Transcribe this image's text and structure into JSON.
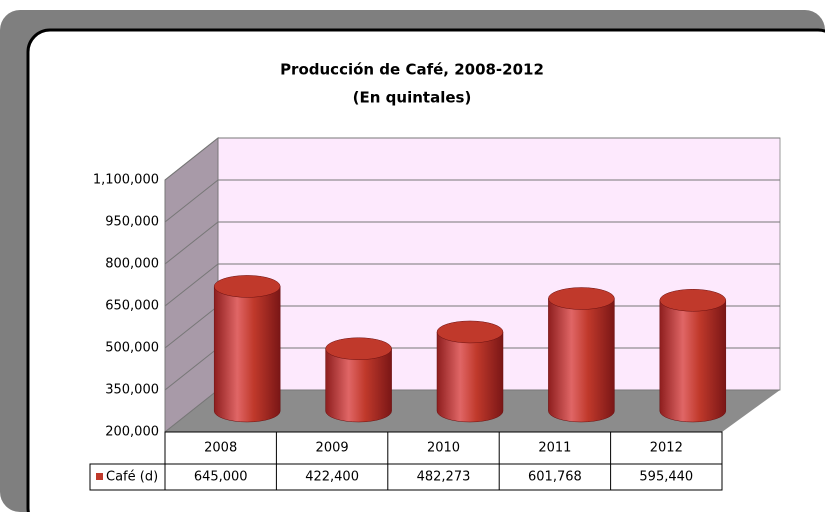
{
  "chart_data": {
    "type": "bar",
    "title": "Producción de  Café, 2008-2012",
    "subtitle": "(En quintales)",
    "categories": [
      "2008",
      "2009",
      "2010",
      "2011",
      "2012"
    ],
    "series": [
      {
        "name": "Café (d)",
        "color": "#c0392b",
        "values": [
          645000,
          422400,
          482273,
          601768,
          595440
        ],
        "value_labels": [
          "645,000",
          "422,400",
          "482,273",
          "601,768",
          "595,440"
        ]
      }
    ],
    "ylim": [
      200000,
      1100000
    ],
    "yticks": [
      {
        "value": 200000,
        "label": "200,000"
      },
      {
        "value": 350000,
        "label": "350,000"
      },
      {
        "value": 500000,
        "label": "500,000"
      },
      {
        "value": 650000,
        "label": "650,000"
      },
      {
        "value": 800000,
        "label": "800,000"
      },
      {
        "value": 950000,
        "label": "950,000"
      },
      {
        "value": 1100000,
        "label": "1,100,000"
      }
    ],
    "grid": true,
    "data_table": true
  }
}
